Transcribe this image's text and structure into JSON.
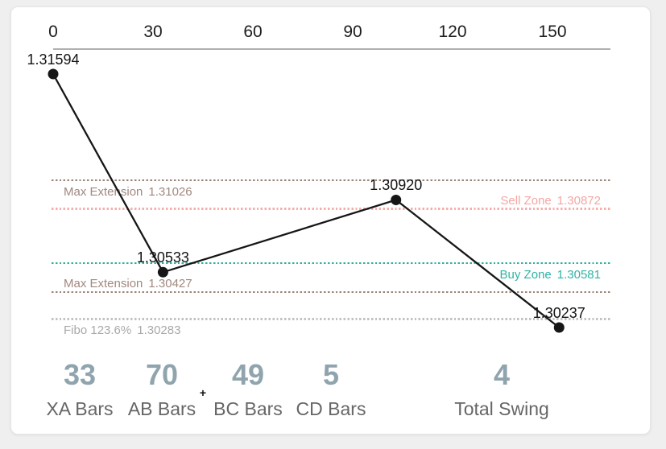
{
  "chart_data": {
    "type": "line",
    "title": "",
    "x_axis": {
      "position": "top",
      "ticks": [
        "0",
        "30",
        "60",
        "90",
        "120",
        "150"
      ],
      "tick_values": [
        0,
        30,
        60,
        90,
        120,
        150
      ],
      "xlim": [
        0,
        167
      ],
      "axis_line_color": "#b0b0b0"
    },
    "ylim": [
      1.30237,
      1.31594
    ],
    "series": [
      {
        "name": "harmonic-swing",
        "color": "#161616",
        "points": [
          {
            "bar": 0,
            "price": 1.31594,
            "label": "1.31594"
          },
          {
            "bar": 33,
            "price": 1.30533,
            "label": "1.30533"
          },
          {
            "bar": 103,
            "price": 1.3092,
            "label": "1.30920"
          },
          {
            "bar": 152,
            "price": 1.30237,
            "label": "1.30237"
          }
        ]
      }
    ],
    "levels": [
      {
        "name": "Max Extension",
        "value": 1.31026,
        "value_label": "1.31026",
        "color": "#a1887f",
        "line_color": "#9c8478",
        "side": "left",
        "label_pos": "below"
      },
      {
        "name": "Sell Zone",
        "value": 1.30872,
        "value_label": "1.30872",
        "color": "#f5a6a3",
        "line_color": "#f6aeab",
        "side": "right",
        "label_pos": "above"
      },
      {
        "name": "Buy Zone",
        "value": 1.30581,
        "value_label": "1.30581",
        "color": "#2fb3a4",
        "line_color": "#2db1a2",
        "side": "right",
        "label_pos": "below"
      },
      {
        "name": "Max Extension",
        "value": 1.30427,
        "value_label": "1.30427",
        "color": "#a1887f",
        "line_color": "#9c8478",
        "side": "left",
        "label_pos": "above"
      },
      {
        "name": "Fibo 123.6%",
        "value": 1.30283,
        "value_label": "1.30283",
        "color": "#a9a9a9",
        "line_color": "#c2c2c2",
        "side": "left",
        "label_pos": "below"
      }
    ],
    "legend": false,
    "grid": false
  },
  "stats": [
    {
      "value": "33",
      "label": "XA Bars"
    },
    {
      "value": "70",
      "label": "AB Bars"
    },
    {
      "value": "49",
      "label": "BC Bars"
    },
    {
      "value": "5",
      "label": "CD Bars"
    },
    {
      "value": "4",
      "label": "Total Swing"
    }
  ],
  "cursor": {
    "glyph": "+"
  },
  "colors": {
    "background": "#efefef",
    "card": "#ffffff",
    "stat_value": "#90a4ae",
    "stat_label": "#666666",
    "swing_line": "#161616",
    "axis_text": "#1c1c1c"
  }
}
